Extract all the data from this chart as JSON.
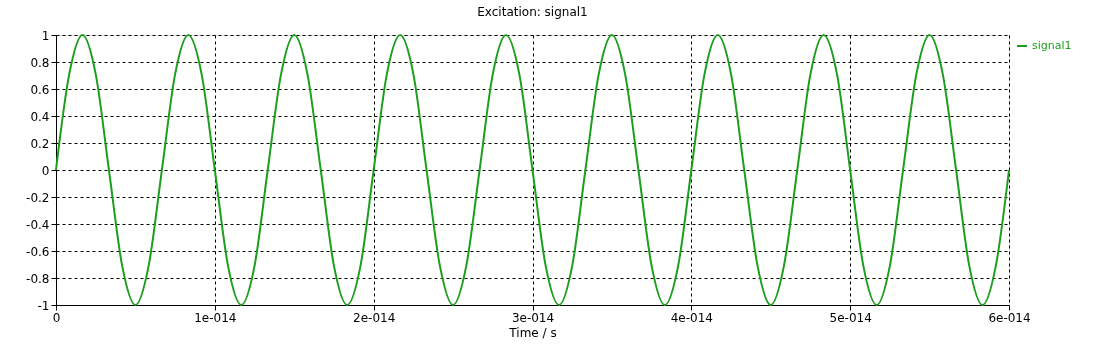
{
  "chart_data": {
    "type": "line",
    "title": "Excitation: signal1",
    "xlabel": "Time / s",
    "series": [
      {
        "name": "signal1",
        "color": "#1e9e1e",
        "x": [
          0,
          8.333e-16,
          1.667e-15,
          2.5e-15,
          3.333e-15,
          4.167e-15,
          5e-15,
          5.833e-15,
          6.667e-15,
          7.5e-15,
          8.333e-15,
          9.167e-15,
          1e-14,
          1.083e-14,
          1.167e-14,
          1.25e-14,
          1.333e-14,
          1.417e-14,
          1.5e-14,
          1.583e-14,
          1.667e-14,
          1.75e-14,
          1.833e-14,
          1.917e-14,
          2e-14,
          2.083e-14,
          2.167e-14,
          2.25e-14,
          2.333e-14,
          2.417e-14,
          2.5e-14,
          2.583e-14,
          2.667e-14,
          2.75e-14,
          2.833e-14,
          2.917e-14,
          3e-14,
          3.083e-14,
          3.167e-14,
          3.25e-14,
          3.333e-14,
          3.417e-14,
          3.5e-14,
          3.583e-14,
          3.667e-14,
          3.75e-14,
          3.833e-14,
          3.917e-14,
          4e-14,
          4.083e-14,
          4.167e-14,
          4.25e-14,
          4.333e-14,
          4.417e-14,
          4.5e-14,
          4.583e-14,
          4.667e-14,
          4.75e-14,
          4.833e-14,
          4.917e-14,
          5e-14,
          5.083e-14,
          5.167e-14,
          5.25e-14,
          5.333e-14,
          5.417e-14,
          5.5e-14,
          5.583e-14,
          5.667e-14,
          5.75e-14,
          5.833e-14,
          5.917e-14,
          6e-14
        ],
        "values": [
          0,
          0.71,
          1,
          0.71,
          0,
          -0.71,
          -1,
          -0.71,
          0,
          0.71,
          1,
          0.71,
          0,
          -0.71,
          -1,
          -0.71,
          0,
          0.71,
          1,
          0.71,
          0,
          -0.71,
          -1,
          -0.71,
          0,
          0.71,
          1,
          0.71,
          0,
          -0.71,
          -1,
          -0.71,
          0,
          0.71,
          1,
          0.71,
          0,
          -0.71,
          -1,
          -0.71,
          0,
          0.71,
          1,
          0.71,
          0,
          -0.71,
          -1,
          -0.71,
          0,
          0.71,
          1,
          0.71,
          0,
          -0.71,
          -1,
          -0.71,
          0,
          0.71,
          1,
          0.71,
          0,
          -0.71,
          -1,
          -0.71,
          0,
          0.71,
          1,
          0.71,
          0,
          -0.71,
          -1,
          -0.71,
          0
        ]
      }
    ],
    "xlim": [
      0,
      6e-14
    ],
    "xticks": [
      0,
      {
        "value": 1e-14,
        "label": "1e-014"
      },
      {
        "value": 2e-14,
        "label": "2e-014"
      },
      {
        "value": 3e-14,
        "label": "3e-014"
      },
      {
        "value": 4e-14,
        "label": "4e-014"
      },
      {
        "value": 5e-14,
        "label": "5e-014"
      },
      {
        "value": 6e-14,
        "label": "6e-014"
      }
    ],
    "ylim": [
      -1,
      1
    ],
    "yticks": [
      -1,
      -0.8,
      -0.6,
      -0.4,
      -0.2,
      0,
      0.2,
      0.4,
      0.6,
      0.8,
      1
    ],
    "grid": true,
    "legend": "top right",
    "marker": "none",
    "line_style": "solid"
  }
}
